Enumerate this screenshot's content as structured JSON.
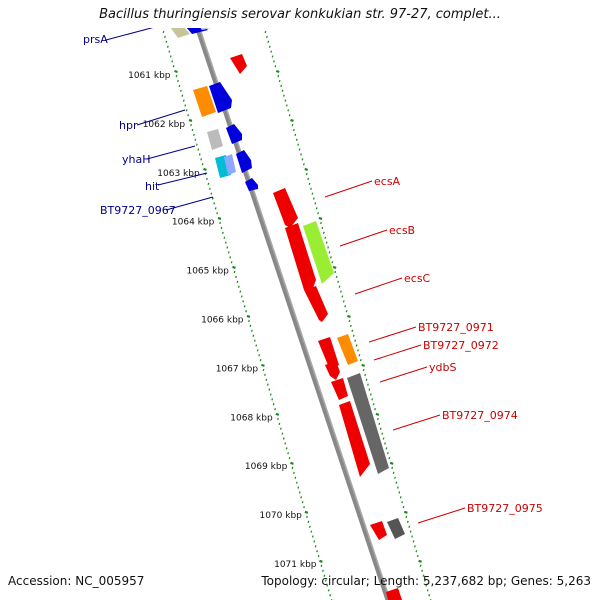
{
  "title": "Bacillus thuringiensis serovar konkukian str. 97-27, complet...",
  "footer": {
    "accession": "Accession: NC_005957",
    "topology": "Topology: circular; Length: 5,237,682 bp; Genes: 5,263"
  },
  "colors": {
    "backbone": "#888888",
    "ticks": "#1a8a1a",
    "left_label": "#00008b",
    "right_label": "#cc0000"
  },
  "kbp_labels": [
    "1061 kbp",
    "1062 kbp",
    "1063 kbp",
    "1064 kbp",
    "1065 kbp",
    "1066 kbp",
    "1067 kbp",
    "1068 kbp",
    "1069 kbp",
    "1070 kbp",
    "1071 kbp"
  ],
  "left_genes": [
    "prsA",
    "hpr",
    "yhaH",
    "hit",
    "BT9727_0967"
  ],
  "right_genes": [
    "ecsA",
    "ecsB",
    "ecsC",
    "BT9727_0971",
    "BT9727_0972",
    "ydbS",
    "BT9727_0974",
    "BT9727_0975"
  ]
}
